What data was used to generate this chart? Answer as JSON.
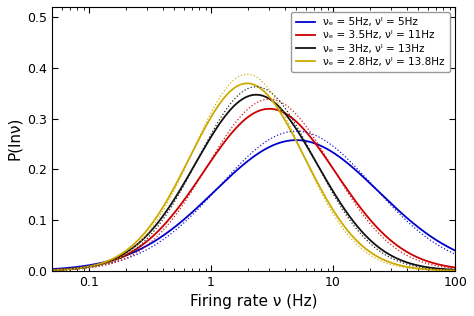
{
  "xlabel": "Firing rate ν (Hz)",
  "ylabel": "P(lnν)",
  "xlim": [
    0.05,
    100
  ],
  "ylim": [
    0,
    0.52
  ],
  "yticks": [
    0,
    0.1,
    0.2,
    0.3,
    0.4,
    0.5
  ],
  "xticks": [
    0.1,
    1,
    10,
    100
  ],
  "xticklabels": [
    "0.1",
    "1",
    "10",
    "100"
  ],
  "curves": [
    {
      "mu_log": 1.609,
      "sigma_log": 1.55,
      "color": "#0000cc",
      "label": "νₑ = 5Hz, νᴵ = 5Hz"
    },
    {
      "mu_log": 1.1,
      "sigma_log": 1.25,
      "color": "#cc0000",
      "label": "νₑ = 3.5Hz, νᴵ = 11Hz"
    },
    {
      "mu_log": 0.85,
      "sigma_log": 1.15,
      "color": "#111111",
      "label": "νₑ = 3Hz, νᴵ = 13Hz"
    },
    {
      "mu_log": 0.68,
      "sigma_log": 1.08,
      "color": "#ccaa00",
      "label": "νₑ = 2.8Hz, νᴵ = 13.8Hz"
    }
  ],
  "dotted_curves": [
    {
      "mu_log": 1.609,
      "sigma_log": 1.45,
      "color": "#0000cc"
    },
    {
      "mu_log": 1.1,
      "sigma_log": 1.18,
      "color": "#cc0000"
    },
    {
      "mu_log": 0.85,
      "sigma_log": 1.1,
      "color": "#111111"
    },
    {
      "mu_log": 0.68,
      "sigma_log": 1.03,
      "color": "#ccaa00"
    }
  ],
  "background_color": "#ffffff",
  "legend_fontsize": 7.5,
  "axis_fontsize": 11,
  "tick_fontsize": 9
}
